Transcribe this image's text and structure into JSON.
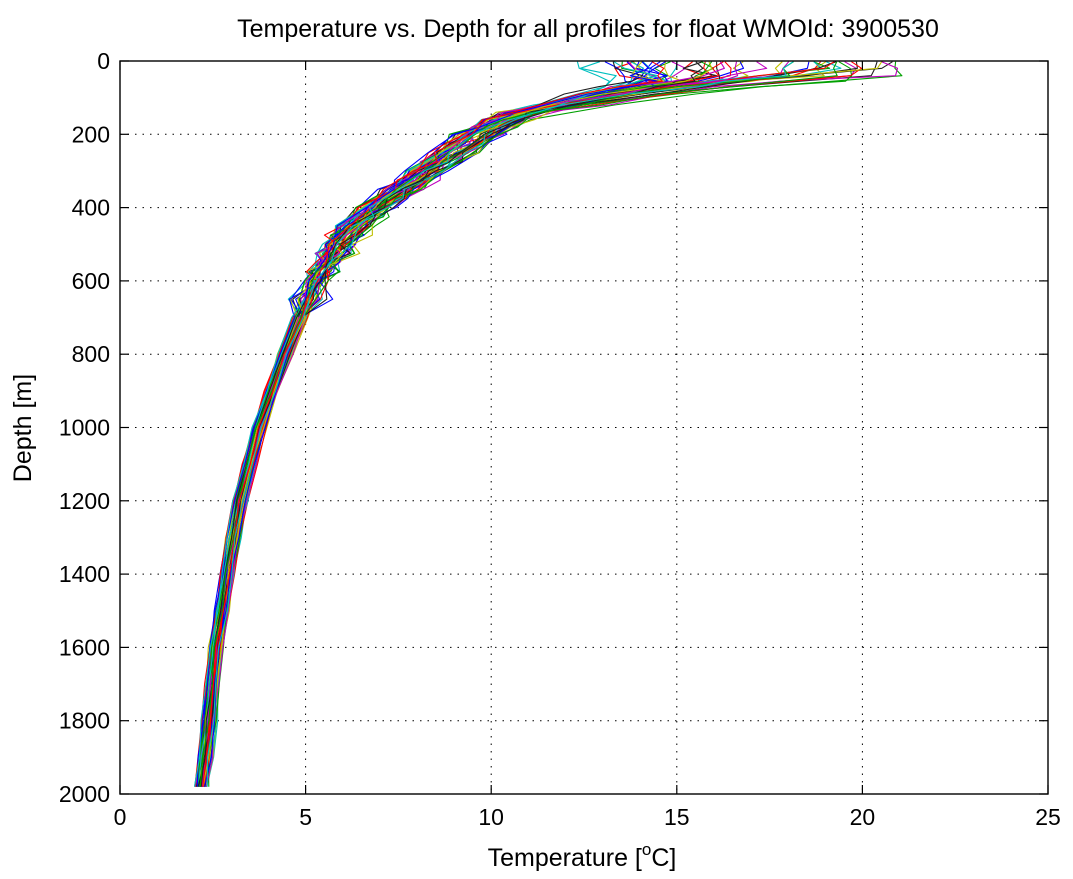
{
  "chart_data": {
    "type": "line",
    "title": "Temperature vs. Depth for all profiles for float WMOId: 3900530",
    "xlabel_prefix": "Temperature [",
    "xlabel_sup": "o",
    "xlabel_suffix": "C]",
    "ylabel": "Depth [m]",
    "xlim": [
      0,
      25
    ],
    "ylim": [
      0,
      2000
    ],
    "y_reversed": true,
    "grid": "dotted",
    "x_ticks": [
      "0",
      "5",
      "10",
      "15",
      "20",
      "25"
    ],
    "y_ticks": [
      "0",
      "200",
      "400",
      "600",
      "800",
      "1000",
      "1200",
      "1400",
      "1600",
      "1800",
      "2000"
    ],
    "legend": "none",
    "colors": [
      "#0000ff",
      "#00a000",
      "#ff0000",
      "#00bfbf",
      "#bf00bf",
      "#bfbf00",
      "#202020"
    ],
    "depth": [
      2,
      20,
      40,
      55,
      70,
      90,
      120,
      160,
      200,
      250,
      300,
      350,
      400,
      450,
      500,
      550,
      600,
      700,
      800,
      900,
      1000,
      1100,
      1200,
      1300,
      1400,
      1500,
      1600,
      1700,
      1800,
      1900,
      1980
    ],
    "base_temperature": [
      16,
      16,
      15.6,
      14.5,
      13.3,
      12.2,
      11.2,
      10.4,
      9.7,
      9.0,
      8.3,
      7.6,
      6.9,
      6.3,
      5.9,
      5.6,
      5.3,
      4.85,
      4.45,
      4.1,
      3.75,
      3.5,
      3.25,
      3.05,
      2.9,
      2.75,
      2.6,
      2.5,
      2.4,
      2.3,
      2.2
    ],
    "profiles_shown": 60,
    "surface_temperature_range": [
      12.5,
      21.2
    ]
  }
}
